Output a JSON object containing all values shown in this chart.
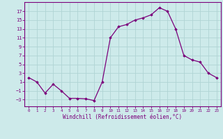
{
  "x": [
    0,
    1,
    2,
    3,
    4,
    5,
    6,
    7,
    8,
    9,
    10,
    11,
    12,
    13,
    14,
    15,
    16,
    17,
    18,
    19,
    20,
    21,
    22,
    23
  ],
  "y": [
    2,
    1,
    -1.5,
    0.5,
    -1,
    -2.7,
    -2.7,
    -2.8,
    -3.2,
    1,
    11,
    13.5,
    14,
    15,
    15.5,
    16.2,
    17.8,
    17,
    13,
    7,
    6,
    5.5,
    3,
    2
  ],
  "line_color": "#7b007b",
  "marker_color": "#7b007b",
  "bg_color": "#cdeaea",
  "grid_color": "#b0d4d4",
  "xlabel": "Windchill (Refroidissement éolien,°C)",
  "ylim": [
    -4.5,
    19
  ],
  "xlim": [
    -0.5,
    23.5
  ],
  "yticks": [
    -3,
    -1,
    1,
    3,
    5,
    7,
    9,
    11,
    13,
    15,
    17
  ],
  "xtick_labels": [
    "0",
    "1",
    "2",
    "3",
    "4",
    "5",
    "6",
    "7",
    "8",
    "9",
    "10",
    "11",
    "12",
    "13",
    "14",
    "15",
    "16",
    "17",
    "18",
    "19",
    "20",
    "21",
    "22",
    "23"
  ],
  "font_color": "#7b007b"
}
